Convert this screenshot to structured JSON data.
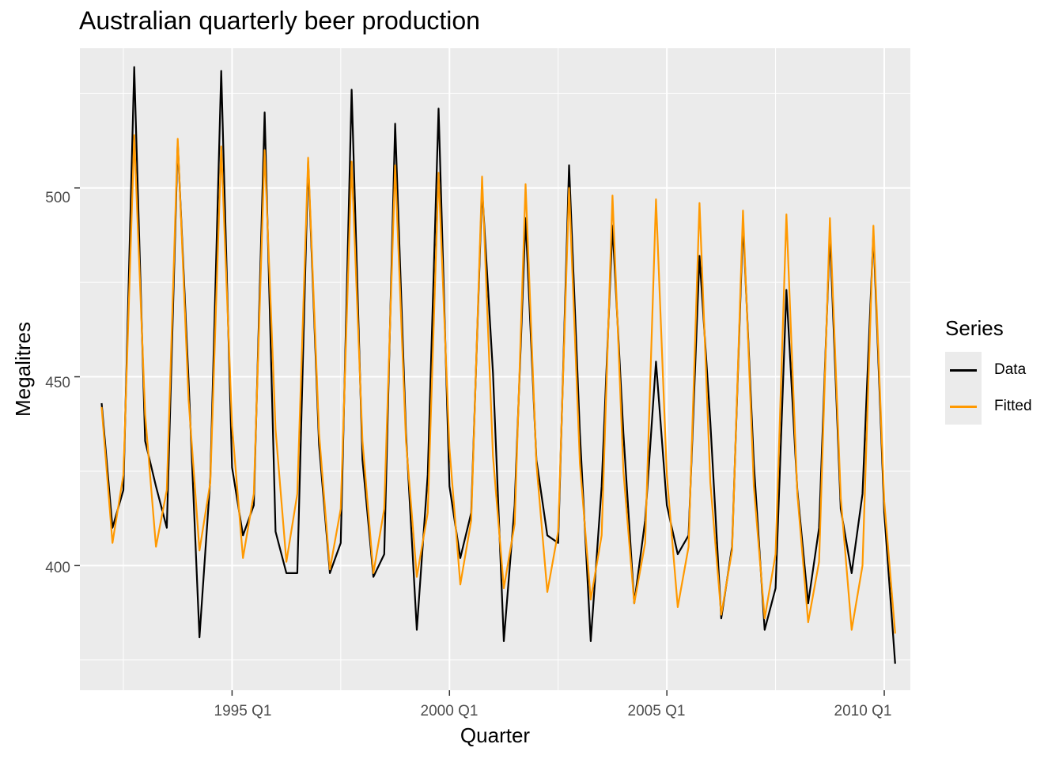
{
  "chart_data": {
    "type": "line",
    "title": "Australian quarterly beer production",
    "xlabel": "Quarter",
    "ylabel": "Megalitres",
    "x_start": "1992 Q1",
    "x_tick_labels": [
      "1995 Q1",
      "2000 Q1",
      "2005 Q1",
      "2010 Q1"
    ],
    "y_tick_labels": [
      "400",
      "450",
      "500"
    ],
    "ylim": [
      367,
      537
    ],
    "grid": true,
    "legend_title": "Series",
    "legend_position": "right",
    "series": [
      {
        "name": "Data",
        "color": "#000000",
        "values": [
          443,
          410,
          420,
          532,
          433,
          421,
          410,
          512,
          449,
          381,
          423,
          531,
          426,
          408,
          416,
          520,
          409,
          398,
          398,
          507,
          432,
          398,
          406,
          526,
          428,
          397,
          403,
          517,
          435,
          383,
          424,
          521,
          421,
          402,
          414,
          500,
          451,
          380,
          416,
          492,
          428,
          408,
          406,
          506,
          435,
          380,
          421,
          490,
          435,
          390,
          412,
          454,
          416,
          403,
          408,
          482,
          438,
          386,
          405,
          491,
          427,
          383,
          394,
          473,
          420,
          390,
          410,
          488,
          415,
          398,
          419,
          488,
          414,
          374
        ]
      },
      {
        "name": "Fitted",
        "color": "#ff9900",
        "values": [
          442,
          406,
          424,
          514,
          440,
          405,
          420,
          513,
          444,
          404,
          422,
          511,
          437,
          402,
          419,
          510,
          436,
          401,
          419,
          508,
          435,
          399,
          415,
          507,
          433,
          398,
          415,
          506,
          433,
          397,
          414,
          504,
          431,
          395,
          412,
          503,
          429,
          394,
          411,
          501,
          427,
          393,
          409,
          500,
          427,
          391,
          408,
          498,
          425,
          390,
          406,
          497,
          424,
          389,
          405,
          496,
          422,
          387,
          404,
          494,
          421,
          386,
          403,
          493,
          419,
          385,
          401,
          492,
          418,
          383,
          400,
          490,
          417,
          382
        ]
      }
    ]
  }
}
